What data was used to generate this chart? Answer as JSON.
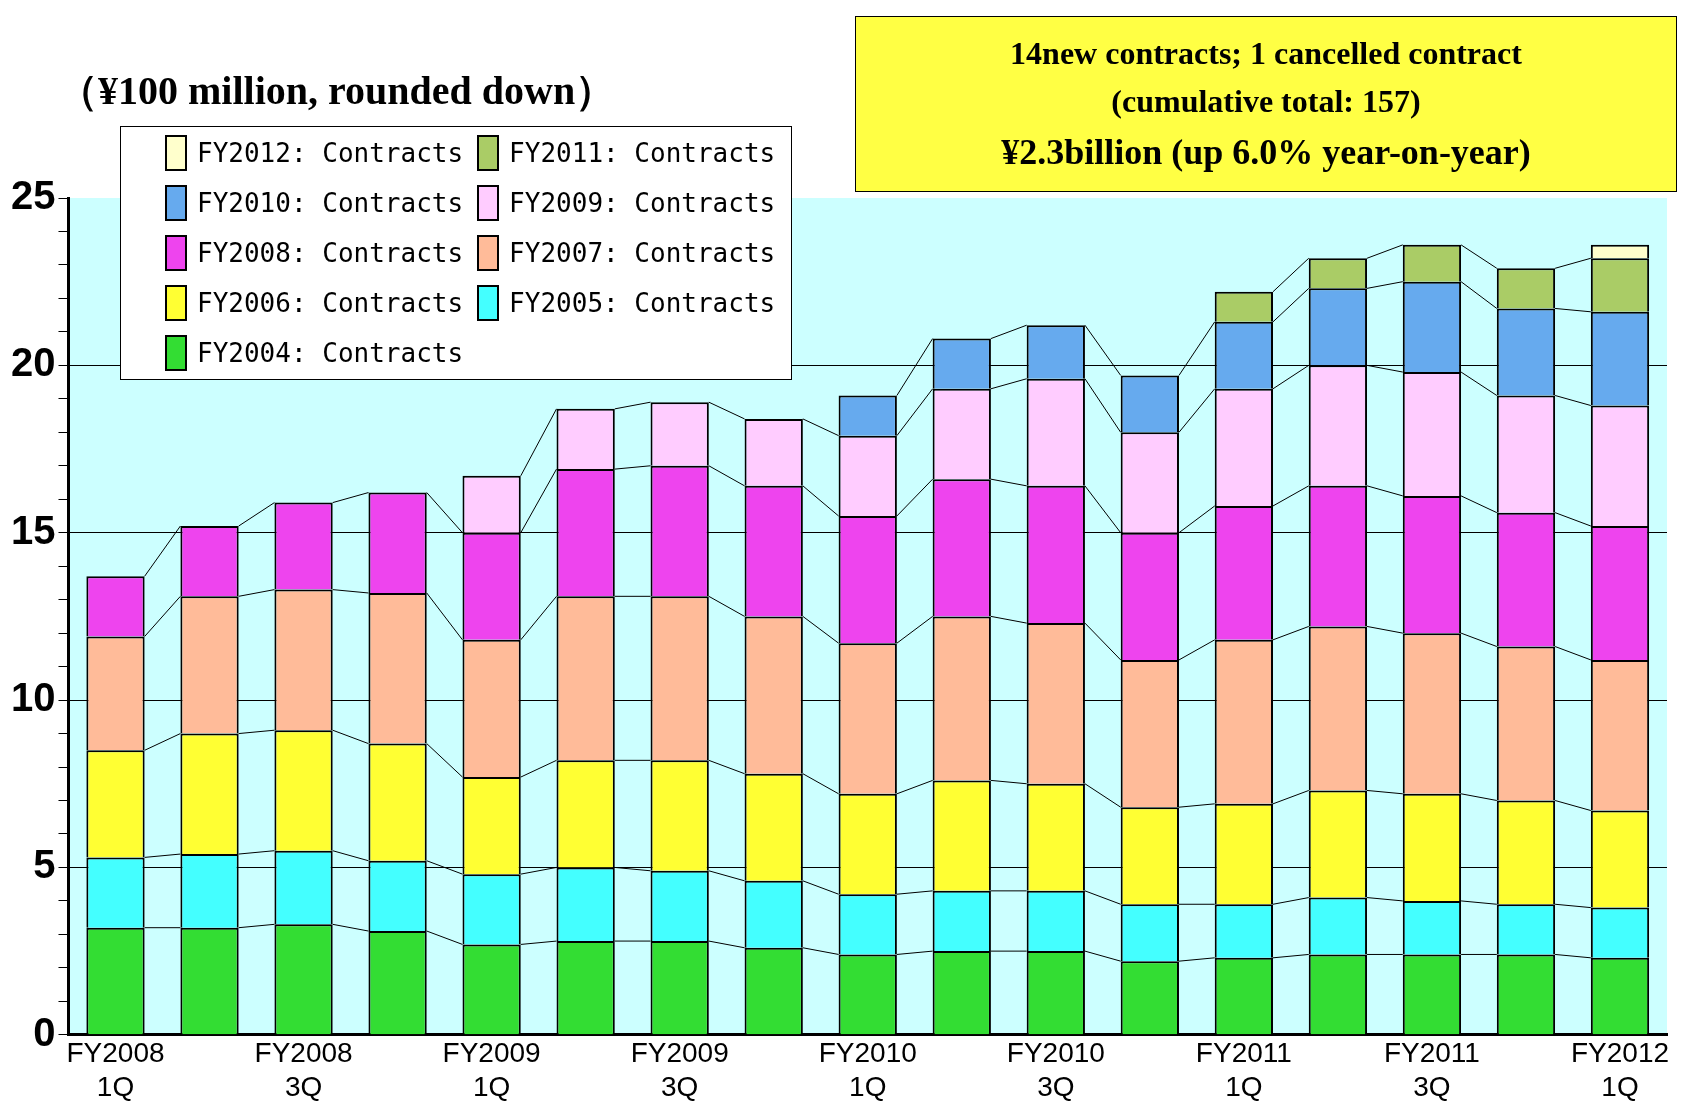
{
  "chart_data": {
    "type": "bar",
    "stacked": true,
    "ylabel": "（¥100 million, rounded down）",
    "annotations": [
      "14new contracts;  1 cancelled  contract",
      "(cumulative total: 157)",
      "¥2.3billion (up 6.0% year-on-year)"
    ],
    "categories": [
      "FY2008 1Q",
      null,
      "FY2008 3Q",
      null,
      "FY2009 1Q",
      null,
      "FY2009 3Q",
      null,
      "FY2010 1Q",
      null,
      "FY2010 3Q",
      null,
      "FY2011 1Q",
      null,
      "FY2011 3Q",
      null,
      "FY2012 1Q"
    ],
    "series": [
      {
        "name": "FY2004: Contracts",
        "color": "#33dd33",
        "values": [
          3.2,
          3.2,
          3.3,
          3.1,
          2.7,
          2.8,
          2.8,
          2.6,
          2.4,
          2.5,
          2.5,
          2.2,
          2.3,
          2.4,
          2.4,
          2.4,
          2.3
        ]
      },
      {
        "name": "FY2005: Contracts",
        "color": "#44ffff",
        "values": [
          2.1,
          2.2,
          2.2,
          2.1,
          2.1,
          2.2,
          2.1,
          2.0,
          1.8,
          1.8,
          1.8,
          1.7,
          1.6,
          1.7,
          1.6,
          1.5,
          1.5
        ]
      },
      {
        "name": "FY2006: Contracts",
        "color": "#ffff33",
        "values": [
          3.2,
          3.6,
          3.6,
          3.5,
          2.9,
          3.2,
          3.3,
          3.2,
          3.0,
          3.3,
          3.2,
          2.9,
          3.0,
          3.2,
          3.2,
          3.1,
          2.9
        ]
      },
      {
        "name": "FY2007: Contracts",
        "color": "#ffbb99",
        "values": [
          3.4,
          4.1,
          4.2,
          4.5,
          4.1,
          4.9,
          4.9,
          4.7,
          4.5,
          4.9,
          4.8,
          4.4,
          4.9,
          4.9,
          4.8,
          4.6,
          4.5
        ]
      },
      {
        "name": "FY2008: Contracts",
        "color": "#ee44ee",
        "values": [
          1.8,
          2.1,
          2.6,
          3.0,
          3.2,
          3.8,
          3.9,
          3.9,
          3.8,
          4.1,
          4.1,
          3.8,
          4.0,
          4.2,
          4.1,
          4.0,
          4.0
        ]
      },
      {
        "name": "FY2009: Contracts",
        "color": "#ffccff",
        "values": [
          null,
          null,
          null,
          null,
          1.7,
          1.8,
          1.9,
          2.0,
          2.4,
          2.7,
          3.2,
          3.0,
          3.5,
          3.6,
          3.7,
          3.5,
          3.6
        ]
      },
      {
        "name": "FY2010: Contracts",
        "color": "#66aaee",
        "values": [
          null,
          null,
          null,
          null,
          null,
          null,
          null,
          null,
          1.2,
          1.5,
          1.6,
          1.7,
          2.0,
          2.3,
          2.7,
          2.6,
          2.8
        ]
      },
      {
        "name": "FY2011: Contracts",
        "color": "#aacc66",
        "values": [
          null,
          null,
          null,
          null,
          null,
          null,
          null,
          null,
          null,
          null,
          null,
          null,
          0.9,
          0.9,
          1.1,
          1.2,
          1.6
        ]
      },
      {
        "name": "FY2012: Contracts",
        "color": "#ffffcc",
        "values": [
          null,
          null,
          null,
          null,
          null,
          null,
          null,
          null,
          null,
          null,
          null,
          null,
          null,
          null,
          null,
          null,
          0.4
        ]
      }
    ],
    "ylim": [
      0,
      25
    ],
    "yticks": [
      0,
      {
        "value": 1,
        "label": null
      },
      {
        "value": 2,
        "label": null
      },
      {
        "value": 3,
        "label": null
      },
      {
        "value": 4,
        "label": null
      },
      5,
      {
        "value": 6,
        "label": null
      },
      {
        "value": 7,
        "label": null
      },
      {
        "value": 8,
        "label": null
      },
      {
        "value": 9,
        "label": null
      },
      10,
      {
        "value": 11,
        "label": null
      },
      {
        "value": 12,
        "label": null
      },
      {
        "value": 13,
        "label": null
      },
      {
        "value": 14,
        "label": null
      },
      15,
      {
        "value": 16,
        "label": null
      },
      {
        "value": 17,
        "label": null
      },
      {
        "value": 18,
        "label": null
      },
      {
        "value": 19,
        "label": null
      },
      20,
      {
        "value": 21,
        "label": null
      },
      {
        "value": 22,
        "label": null
      },
      {
        "value": 23,
        "label": null
      },
      {
        "value": 24,
        "label": null
      },
      25
    ],
    "grid": "y",
    "legend": "top left"
  }
}
